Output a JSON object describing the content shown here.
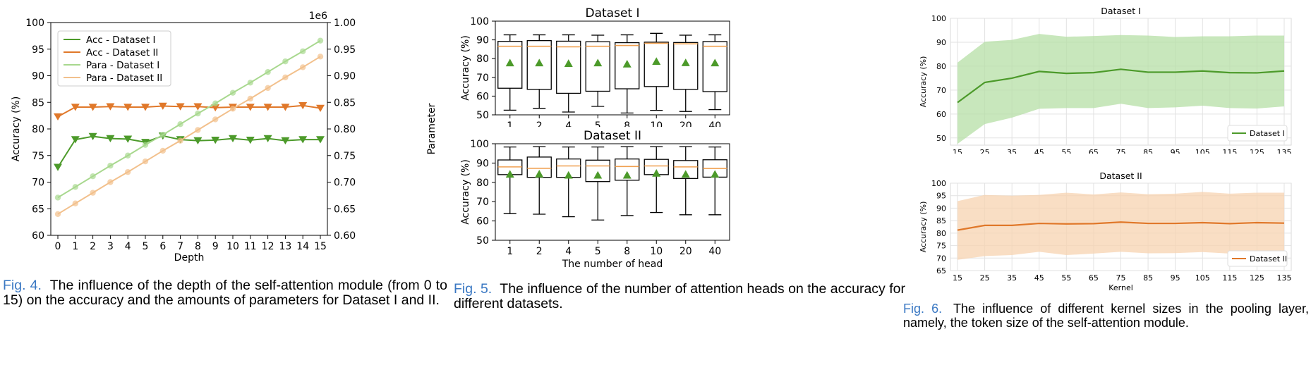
{
  "figures": [
    {
      "label": "Fig. 4.",
      "text": "The influence of the depth of the self-attention module (from 0 to 15) on the accuracy and the amounts of parameters for Dataset I and II."
    },
    {
      "label": "Fig. 5.",
      "text": "The influence of the number of attention heads on the accuracy for different datasets."
    },
    {
      "label": "Fig. 6.",
      "text": "The influence of different kernel sizes in the pooling layer, namely, the token size of the self-attention module."
    }
  ],
  "colors": {
    "green": "#4c9a2a",
    "orange": "#e0782a",
    "light_green": "#a8d88e",
    "light_orange": "#f2c08c",
    "median": "#f0a050",
    "mean_marker": "#4c9a2a",
    "band_green": "#b5dfa5",
    "band_orange": "#f7d3b0"
  },
  "chart_data": [
    {
      "type": "line",
      "xlabel": "Depth",
      "ylabel": "Accuracy (%)",
      "y2label": "Parameter",
      "y2_offset_label": "1e6",
      "x": [
        0,
        1,
        2,
        3,
        4,
        5,
        6,
        7,
        8,
        9,
        10,
        11,
        12,
        13,
        14,
        15
      ],
      "ylim": [
        60,
        100
      ],
      "yticks": [
        60,
        65,
        70,
        75,
        80,
        85,
        90,
        95,
        100
      ],
      "y2lim": [
        0.6,
        1.0
      ],
      "y2ticks": [
        "0.60",
        "0.65",
        "0.70",
        "0.75",
        "0.80",
        "0.85",
        "0.90",
        "0.95",
        "1.00"
      ],
      "legend_position": "top-left",
      "series": [
        {
          "name": "Acc - Dataset I",
          "axis": "left",
          "marker": "triangle-down",
          "values": [
            72.8,
            78.0,
            78.6,
            78.2,
            78.1,
            77.5,
            78.7,
            78.0,
            77.8,
            77.9,
            78.2,
            77.9,
            78.2,
            77.8,
            78.0,
            78.0
          ]
        },
        {
          "name": "Acc - Dataset II",
          "axis": "left",
          "marker": "triangle-down",
          "values": [
            82.3,
            84.1,
            84.1,
            84.2,
            84.1,
            84.1,
            84.3,
            84.2,
            84.2,
            84.0,
            84.1,
            84.1,
            84.1,
            84.1,
            84.4,
            83.9
          ]
        },
        {
          "name": "Para - Dataset I",
          "axis": "right",
          "marker": "circle",
          "values": [
            0.671,
            0.691,
            0.711,
            0.731,
            0.75,
            0.77,
            0.789,
            0.809,
            0.829,
            0.848,
            0.868,
            0.887,
            0.907,
            0.927,
            0.946,
            0.966
          ]
        },
        {
          "name": "Para - Dataset II",
          "axis": "right",
          "marker": "circle",
          "values": [
            0.64,
            0.66,
            0.68,
            0.7,
            0.719,
            0.739,
            0.759,
            0.778,
            0.798,
            0.818,
            0.838,
            0.857,
            0.877,
            0.897,
            0.916,
            0.936
          ]
        }
      ]
    },
    {
      "type": "box",
      "title": "Dataset I",
      "ylabel": "Accuracy (%)",
      "categories": [
        "1",
        "2",
        "4",
        "5",
        "8",
        "10",
        "20",
        "40"
      ],
      "ylim": [
        50,
        100
      ],
      "yticks": [
        50,
        60,
        70,
        80,
        90,
        100
      ],
      "boxes": [
        {
          "whisker_low": 52.5,
          "q1": 64.2,
          "median": 86.6,
          "q3": 89.2,
          "whisker_high": 92.7,
          "mean": 77.8
        },
        {
          "whisker_low": 53.5,
          "q1": 63.6,
          "median": 86.6,
          "q3": 89.6,
          "whisker_high": 92.7,
          "mean": 77.8
        },
        {
          "whisker_low": 51.5,
          "q1": 61.5,
          "median": 86.3,
          "q3": 89.3,
          "whisker_high": 92.7,
          "mean": 77.5
        },
        {
          "whisker_low": 54.5,
          "q1": 62.6,
          "median": 86.6,
          "q3": 89.0,
          "whisker_high": 92.5,
          "mean": 77.8
        },
        {
          "whisker_low": 51.0,
          "q1": 63.9,
          "median": 87.0,
          "q3": 88.5,
          "whisker_high": 92.7,
          "mean": 77.2
        },
        {
          "whisker_low": 52.4,
          "q1": 65.1,
          "median": 88.2,
          "q3": 88.8,
          "whisker_high": 93.5,
          "mean": 78.6
        },
        {
          "whisker_low": 51.8,
          "q1": 63.6,
          "median": 87.9,
          "q3": 88.6,
          "whisker_high": 92.5,
          "mean": 77.9
        },
        {
          "whisker_low": 52.8,
          "q1": 62.4,
          "median": 86.6,
          "q3": 89.1,
          "whisker_high": 92.7,
          "mean": 77.8
        }
      ]
    },
    {
      "type": "box",
      "title": "Dataset II",
      "xlabel": "The number of head",
      "ylabel": "Accuracy (%)",
      "categories": [
        "1",
        "2",
        "4",
        "5",
        "8",
        "10",
        "20",
        "40"
      ],
      "ylim": [
        50,
        100
      ],
      "yticks": [
        50,
        60,
        70,
        80,
        90,
        100
      ],
      "boxes": [
        {
          "whisker_low": 63.8,
          "q1": 84.0,
          "median": 88.0,
          "q3": 91.6,
          "whisker_high": 98.3,
          "mean": 84.3
        },
        {
          "whisker_low": 63.5,
          "q1": 82.6,
          "median": 87.3,
          "q3": 93.1,
          "whisker_high": 98.5,
          "mean": 84.4
        },
        {
          "whisker_low": 62.2,
          "q1": 82.6,
          "median": 88.5,
          "q3": 92.1,
          "whisker_high": 98.3,
          "mean": 83.8
        },
        {
          "whisker_low": 60.5,
          "q1": 80.4,
          "median": 88.5,
          "q3": 91.5,
          "whisker_high": 98.3,
          "mean": 83.8
        },
        {
          "whisker_low": 62.8,
          "q1": 81.1,
          "median": 88.2,
          "q3": 92.1,
          "whisker_high": 98.5,
          "mean": 83.8
        },
        {
          "whisker_low": 64.4,
          "q1": 84.0,
          "median": 88.5,
          "q3": 91.9,
          "whisker_high": 98.5,
          "mean": 84.8
        },
        {
          "whisker_low": 63.2,
          "q1": 82.0,
          "median": 88.0,
          "q3": 91.3,
          "whisker_high": 98.5,
          "mean": 84.3
        },
        {
          "whisker_low": 63.2,
          "q1": 82.7,
          "median": 87.2,
          "q3": 91.7,
          "whisker_high": 98.3,
          "mean": 84.3
        }
      ]
    },
    {
      "type": "area",
      "title": "Dataset I",
      "ylabel": "Accuracy (%)",
      "x": [
        15,
        25,
        35,
        45,
        55,
        65,
        75,
        85,
        95,
        105,
        115,
        125,
        135
      ],
      "ylim": [
        47,
        100
      ],
      "yticks": [
        50,
        60,
        70,
        80,
        90,
        100
      ],
      "grid": true,
      "legend_position": "bottom-right",
      "series": [
        {
          "name": "Dataset I",
          "values": [
            64.8,
            73.2,
            75.0,
            77.8,
            77.0,
            77.3,
            78.7,
            77.5,
            77.5,
            78.0,
            77.3,
            77.2,
            78.0
          ],
          "lower": [
            47.5,
            55.8,
            58.5,
            62.2,
            62.5,
            62.5,
            64.3,
            62.5,
            62.8,
            63.5,
            62.5,
            62.3,
            63.2
          ],
          "upper": [
            81.5,
            90.2,
            91.0,
            93.5,
            92.3,
            92.6,
            93.0,
            92.8,
            92.2,
            92.5,
            92.5,
            92.8,
            92.8
          ]
        }
      ]
    },
    {
      "type": "area",
      "title": "Dataset II",
      "xlabel": "Kernel",
      "ylabel": "Accuracy (%)",
      "x": [
        15,
        25,
        35,
        45,
        55,
        65,
        75,
        85,
        95,
        105,
        115,
        125,
        135
      ],
      "ylim": [
        65,
        100
      ],
      "yticks": [
        65,
        70,
        75,
        80,
        85,
        90,
        95,
        100
      ],
      "grid": true,
      "legend_position": "bottom-right",
      "series": [
        {
          "name": "Dataset II",
          "values": [
            81.2,
            83.1,
            83.1,
            83.9,
            83.7,
            83.8,
            84.4,
            83.9,
            83.9,
            84.2,
            83.8,
            84.2,
            84.0
          ],
          "lower": [
            69.3,
            70.8,
            71.2,
            72.5,
            71.2,
            71.8,
            72.5,
            71.9,
            72.0,
            72.4,
            71.8,
            72.2,
            71.8
          ],
          "upper": [
            92.8,
            95.3,
            95.0,
            95.3,
            96.2,
            95.5,
            96.3,
            95.6,
            95.8,
            96.5,
            95.8,
            96.2,
            96.2
          ]
        }
      ]
    }
  ]
}
